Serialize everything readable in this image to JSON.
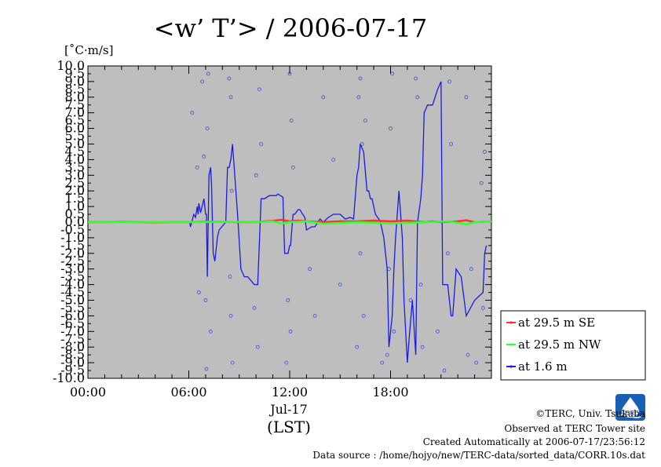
{
  "chart_data": {
    "type": "line",
    "title": "<w’ T’> / 2006-07-17",
    "ylabel": "[˚C·m/s]",
    "xlabel": "(LST)",
    "date_label": "Jul-17",
    "x_unit": "hours LST",
    "xlim": [
      0,
      24
    ],
    "ylim": [
      -10,
      10
    ],
    "x_ticks": [
      0,
      6,
      12,
      18
    ],
    "x_tick_labels": [
      "00:00",
      "06:00",
      "12:00",
      "18:00"
    ],
    "background_color": "#bebebe",
    "grid": false,
    "legend": {
      "placement": "right",
      "entries": [
        {
          "label": "at 29.5 m SE",
          "color": "#ff3030"
        },
        {
          "label": "at 29.5 m NW",
          "color": "#30ff30"
        },
        {
          "label": "at 1.6 m",
          "color": "#2020e0"
        }
      ]
    },
    "series": [
      {
        "name": "at 29.5 m SE",
        "color": "#ff3030",
        "x": [
          0,
          1,
          2,
          3,
          4,
          5,
          6,
          7,
          8,
          9,
          10,
          10.5,
          11,
          11.5,
          12,
          12.5,
          13,
          14,
          15,
          16,
          17,
          18,
          19,
          20,
          20.5,
          21,
          22,
          22.5,
          23,
          24
        ],
        "y": [
          0,
          0,
          0.02,
          0,
          -0.02,
          0,
          0,
          0.03,
          0.02,
          0,
          0,
          0.05,
          0.08,
          0.15,
          0.05,
          0.1,
          0.05,
          0,
          0.05,
          0.05,
          0.1,
          0.05,
          0.1,
          0,
          0.05,
          0,
          0.05,
          0.12,
          0,
          0.05
        ]
      },
      {
        "name": "at 29.5 m NW",
        "color": "#30ff30",
        "x": [
          0,
          2,
          4,
          6,
          8,
          10,
          11,
          11.5,
          12,
          13,
          14,
          16,
          18,
          20,
          21.5,
          22.5,
          23,
          24
        ],
        "y": [
          0,
          0,
          0,
          0,
          0.02,
          0,
          0.05,
          -0.1,
          0,
          0.05,
          -0.1,
          0,
          -0.08,
          0,
          0.05,
          -0.15,
          0,
          0.05
        ]
      },
      {
        "name": "at 1.6 m",
        "color": "#1a1ae6",
        "x": [
          0,
          5.7,
          6.05,
          6.1,
          6.3,
          6.4,
          6.5,
          6.55,
          6.6,
          6.7,
          6.9,
          7.0,
          7.05,
          7.1,
          7.2,
          7.3,
          7.35,
          7.45,
          7.55,
          7.7,
          7.8,
          8.2,
          8.3,
          8.4,
          8.5,
          8.6,
          8.9,
          9.1,
          9.3,
          9.5,
          9.9,
          10.1,
          10.3,
          10.5,
          10.8,
          11.2,
          11.3,
          11.6,
          11.7,
          11.9,
          12.0,
          12.05,
          12.2,
          12.3,
          12.5,
          12.6,
          12.9,
          13.0,
          13.3,
          13.5,
          13.8,
          14.0,
          14.3,
          14.6,
          15.0,
          15.3,
          15.6,
          15.8,
          16.0,
          16.1,
          16.2,
          16.4,
          16.6,
          16.7,
          16.8,
          16.9,
          17.1,
          17.3,
          17.4,
          17.6,
          17.8,
          17.9,
          18.0,
          18.1,
          18.2,
          18.3,
          18.5,
          18.7,
          18.8,
          19.0,
          19.1,
          19.3,
          19.5,
          19.6,
          19.8,
          19.9,
          20.0,
          20.2,
          20.5,
          20.8,
          21.0,
          21.1,
          21.3,
          21.4,
          21.6,
          21.7,
          21.9,
          22.2,
          22.5,
          23.0,
          23.5,
          23.6,
          23.7
        ],
        "y": [
          0,
          0,
          0,
          -0.3,
          0.5,
          0.3,
          1.0,
          0.5,
          1.2,
          0.6,
          1.5,
          0.5,
          0.5,
          -3.5,
          3,
          3.5,
          2.5,
          -2,
          -2.5,
          -1,
          -0.5,
          0,
          3.5,
          3.5,
          4,
          5,
          0.5,
          -3,
          -3.5,
          -3.5,
          -4,
          -4,
          1.5,
          1.5,
          1.7,
          1.7,
          1.8,
          1.6,
          -2,
          -2,
          -1.5,
          -1.5,
          0.5,
          0.5,
          0.8,
          0.8,
          0.3,
          -0.5,
          -0.3,
          -0.3,
          0.2,
          0,
          0.3,
          0.5,
          0.5,
          0.2,
          0.3,
          0.2,
          3,
          3.5,
          5,
          4.5,
          2,
          2,
          1.5,
          1.5,
          0.5,
          0.2,
          0,
          -1,
          -3,
          -8,
          -7,
          -6,
          -3,
          -1,
          2,
          -1,
          -5,
          -9,
          -7.5,
          -5,
          -8.5,
          0,
          1.5,
          3,
          7,
          7.5,
          7.5,
          8.5,
          9,
          -4,
          -4,
          -4,
          -6,
          -6,
          -3,
          -3.5,
          -6,
          -5,
          -4.5,
          -2,
          -1.5
        ]
      }
    ],
    "scatter_series_name": "at 1.6 m",
    "scatter_points": [
      [
        6.2,
        7
      ],
      [
        6.5,
        3.5
      ],
      [
        6.8,
        9
      ],
      [
        7.0,
        -5
      ],
      [
        7.1,
        6
      ],
      [
        7.3,
        -7
      ],
      [
        6.9,
        4.2
      ],
      [
        7.15,
        9.5
      ],
      [
        6.6,
        -4.5
      ],
      [
        7.05,
        -9.4
      ],
      [
        8.5,
        8
      ],
      [
        8.55,
        2
      ],
      [
        8.5,
        -6
      ],
      [
        8.6,
        -9
      ],
      [
        8.4,
        9.2
      ],
      [
        8.45,
        -3.5
      ],
      [
        10.2,
        8.5
      ],
      [
        10.1,
        -8
      ],
      [
        10.3,
        5
      ],
      [
        9.9,
        -5.5
      ],
      [
        10.0,
        3
      ],
      [
        12.0,
        9.5
      ],
      [
        11.8,
        -9
      ],
      [
        12.1,
        6.5
      ],
      [
        11.9,
        -5
      ],
      [
        12.2,
        3.5
      ],
      [
        12.05,
        -7
      ],
      [
        13.5,
        -6
      ],
      [
        14.0,
        8
      ],
      [
        13.2,
        -3
      ],
      [
        15.0,
        -4
      ],
      [
        14.6,
        4
      ],
      [
        16.1,
        8
      ],
      [
        16.2,
        -2
      ],
      [
        16.0,
        -8
      ],
      [
        16.3,
        5
      ],
      [
        16.5,
        6.5
      ],
      [
        16.2,
        9.2
      ],
      [
        16.4,
        -6
      ],
      [
        17.5,
        -9
      ],
      [
        17.8,
        -8.5
      ],
      [
        18.0,
        6
      ],
      [
        18.2,
        -7
      ],
      [
        18.1,
        9.5
      ],
      [
        17.9,
        -3
      ],
      [
        19.2,
        -5
      ],
      [
        19.6,
        8
      ],
      [
        19.8,
        -4
      ],
      [
        19.5,
        9.2
      ],
      [
        19.9,
        -8
      ],
      [
        20.8,
        -7
      ],
      [
        21.2,
        -9.5
      ],
      [
        21.5,
        9
      ],
      [
        21.4,
        -2
      ],
      [
        21.6,
        5
      ],
      [
        22.5,
        8
      ],
      [
        22.8,
        -3
      ],
      [
        22.6,
        -8.5
      ],
      [
        23.1,
        -9
      ],
      [
        23.5,
        -5.5
      ],
      [
        23.4,
        2.5
      ],
      [
        23.6,
        4.5
      ]
    ]
  },
  "footer": {
    "copyright": "©TERC, Univ. Tsukuba",
    "observed": "Observed at TERC Tower site",
    "created": "Created Automatically at 2006-07-17/23:56:12",
    "datasource": "Data source : /home/hojyo/new/TERC-data/sorted_data/CORR.10s.dat"
  },
  "logo": {
    "text": "TERC"
  },
  "icons": {
    "logo": "terc-logo-icon"
  }
}
